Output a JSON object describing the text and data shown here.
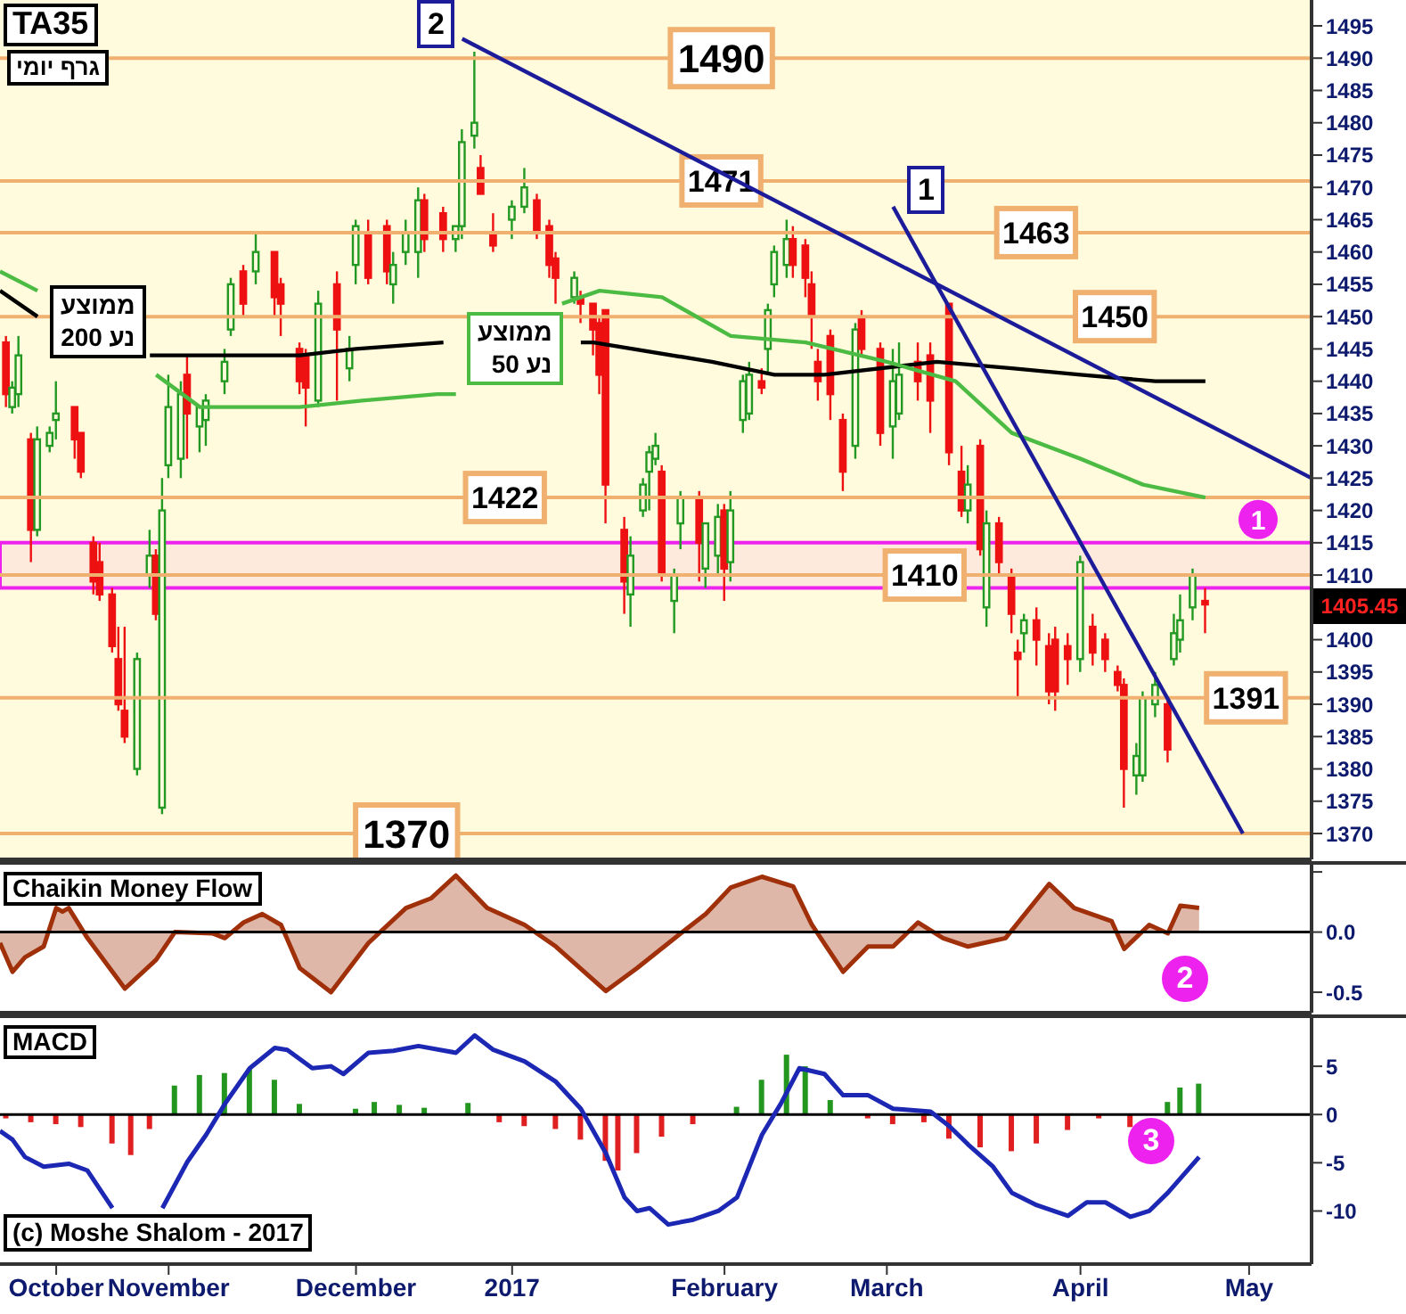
{
  "chart_data": [
    {
      "type": "candlestick",
      "title": "TA35",
      "subtitle": "גרף יומי",
      "xlim": [
        "2016-10-14",
        "2017-05-12"
      ],
      "ylim": [
        1366,
        1499
      ],
      "yticks": [
        1370,
        1375,
        1380,
        1385,
        1390,
        1395,
        1400,
        {
          "value": 1405,
          "label": null
        },
        1410,
        1415,
        1420,
        1425,
        1430,
        1435,
        1440,
        1445,
        1450,
        1455,
        1460,
        1465,
        1470,
        1475,
        1480,
        1485,
        1490,
        1495
      ],
      "tick_labels": "y",
      "series": [
        {
          "x": [
            "2016-10-15",
            "2016-10-16",
            "2016-10-17",
            "2016-10-19",
            "2016-10-20",
            "2016-10-22",
            "2016-10-23",
            "2016-10-26",
            "2016-10-27",
            "2016-10-29",
            "2016-10-30",
            "2016-11-01",
            "2016-11-02",
            "2016-11-03",
            "2016-11-05",
            "2016-11-07",
            "2016-11-08",
            "2016-11-09",
            "2016-11-10",
            "2016-11-12",
            "2016-11-13",
            "2016-11-15",
            "2016-11-16",
            "2016-11-19",
            "2016-11-20",
            "2016-11-22",
            "2016-11-24",
            "2016-11-27",
            "2016-11-28",
            "2016-12-01",
            "2016-12-02",
            "2016-12-04",
            "2016-12-07",
            "2016-12-09",
            "2016-12-10",
            "2016-12-12",
            "2016-12-15",
            "2016-12-16",
            "2016-12-18",
            "2016-12-20",
            "2016-12-21",
            "2016-12-24",
            "2016-12-26",
            "2016-12-27",
            "2016-12-29",
            "2016-12-30",
            "2017-01-01",
            "2017-01-04",
            "2017-01-06",
            "2017-01-08",
            "2017-01-10",
            "2017-01-11",
            "2017-01-14",
            "2017-01-15",
            "2017-01-17",
            "2017-01-18",
            "2017-01-19",
            "2017-01-22",
            "2017-01-23",
            "2017-01-25",
            "2017-01-26",
            "2017-01-27",
            "2017-01-28",
            "2017-01-30",
            "2017-01-31",
            "2017-02-03",
            "2017-02-04",
            "2017-02-06",
            "2017-02-07",
            "2017-02-08",
            "2017-02-10",
            "2017-02-11",
            "2017-02-13",
            "2017-02-14",
            "2017-02-15",
            "2017-02-17",
            "2017-02-18",
            "2017-02-20",
            "2017-02-21",
            "2017-02-22",
            "2017-02-24",
            "2017-02-26",
            "2017-02-28",
            "2017-03-01",
            "2017-03-04",
            "2017-03-06",
            "2017-03-07",
            "2017-03-10",
            "2017-03-12",
            "2017-03-15",
            "2017-03-17",
            "2017-03-18",
            "2017-03-20",
            "2017-03-21",
            "2017-03-23",
            "2017-03-25",
            "2017-03-26",
            "2017-03-27",
            "2017-03-29",
            "2017-03-31",
            "2017-04-01",
            "2017-04-03",
            "2017-04-05",
            "2017-04-07",
            "2017-04-09",
            "2017-04-11",
            "2017-04-12",
            "2017-04-14",
            "2017-04-15",
            "2017-04-17",
            "2017-04-19",
            "2017-04-20",
            "2017-04-21",
            "2017-04-23",
            "2017-04-25"
          ],
          "ohlc": [
            [
              1446,
              1447,
              1436,
              1438
            ],
            [
              1436,
              1440,
              1435,
              1439
            ],
            [
              1438,
              1447,
              1436,
              1444
            ],
            [
              1431,
              1432,
              1412,
              1417
            ],
            [
              1417,
              1433,
              1416,
              1431
            ],
            [
              1430,
              1433,
              1429,
              1432
            ],
            [
              1434,
              1440,
              1431,
              1435
            ],
            [
              1436,
              1436,
              1428,
              1431
            ],
            [
              1432,
              1432,
              1425,
              1426
            ],
            [
              1415,
              1416,
              1407,
              1409
            ],
            [
              1412,
              1415,
              1406,
              1407
            ],
            [
              1407,
              1408,
              1398,
              1399
            ],
            [
              1397,
              1402,
              1389,
              1390
            ],
            [
              1389,
              1402,
              1384,
              1385
            ],
            [
              1380,
              1398,
              1379,
              1397
            ],
            [
              1410,
              1417,
              1408,
              1413
            ],
            [
              1413,
              1414,
              1403,
              1404
            ],
            [
              1374,
              1425,
              1373,
              1420
            ],
            [
              1427,
              1441,
              1425,
              1436
            ],
            [
              1428,
              1440,
              1425,
              1438
            ],
            [
              1441,
              1444,
              1428,
              1435
            ],
            [
              1433,
              1436,
              1429,
              1436
            ],
            [
              1434,
              1438,
              1430,
              1437
            ],
            [
              1440,
              1445,
              1438,
              1443
            ],
            [
              1448,
              1456,
              1447,
              1455
            ],
            [
              1457,
              1458,
              1450,
              1452
            ],
            [
              1457,
              1463,
              1455,
              1460
            ],
            [
              1460,
              1460,
              1450,
              1453
            ],
            [
              1455,
              1456,
              1447,
              1452
            ],
            [
              1445,
              1446,
              1438,
              1440
            ],
            [
              1444,
              1445,
              1433,
              1439
            ],
            [
              1437,
              1454,
              1436,
              1452
            ],
            [
              1455,
              1457,
              1437,
              1448
            ],
            [
              1442,
              1447,
              1440,
              1445
            ],
            [
              1458,
              1465,
              1455,
              1464
            ],
            [
              1463,
              1465,
              1455,
              1456
            ],
            [
              1464,
              1465,
              1455,
              1457
            ],
            [
              1455,
              1460,
              1452,
              1458
            ],
            [
              1460,
              1465,
              1458,
              1463
            ],
            [
              1460,
              1470,
              1456,
              1468
            ],
            [
              1468,
              1469,
              1460,
              1462
            ],
            [
              1466,
              1467,
              1460,
              1462
            ],
            [
              1462,
              1464,
              1460,
              1464
            ],
            [
              1464,
              1479,
              1462,
              1477
            ],
            [
              1478,
              1491,
              1476,
              1480
            ],
            [
              1473,
              1475,
              1469,
              1469
            ],
            [
              1463,
              1466,
              1460,
              1461
            ],
            [
              1465,
              1468,
              1462,
              1467
            ],
            [
              1467,
              1473,
              1466,
              1470
            ],
            [
              1468,
              1469,
              1462,
              1463
            ],
            [
              1464,
              1465,
              1456,
              1458
            ],
            [
              1459,
              1460,
              1452,
              1456
            ],
            [
              1453,
              1457,
              1452,
              1456
            ],
            [
              1453,
              1454,
              1449,
              1452
            ],
            [
              1452,
              1452,
              1444,
              1448
            ],
            [
              1449,
              1450,
              1438,
              1441
            ],
            [
              1451,
              1451,
              1418,
              1424
            ],
            [
              1417,
              1419,
              1404,
              1409
            ],
            [
              1407,
              1416,
              1402,
              1413
            ],
            [
              1420,
              1425,
              1419,
              1424
            ],
            [
              1426,
              1430,
              1420,
              1429
            ],
            [
              1428,
              1432,
              1427,
              1430
            ],
            [
              1426,
              1427,
              1409,
              1410
            ],
            [
              1406,
              1411,
              1401,
              1410
            ],
            [
              1418,
              1423,
              1414,
              1422
            ],
            [
              1422,
              1423,
              1409,
              1415
            ],
            [
              1411,
              1418,
              1408,
              1418
            ],
            [
              1413,
              1421,
              1410,
              1419
            ],
            [
              1420,
              1421,
              1406,
              1411
            ],
            [
              1412,
              1423,
              1409,
              1420
            ],
            [
              1434,
              1441,
              1432,
              1440
            ],
            [
              1435,
              1443,
              1434,
              1441
            ],
            [
              1440,
              1442,
              1438,
              1439
            ],
            [
              1445,
              1452,
              1441,
              1451
            ],
            [
              1455,
              1461,
              1453,
              1460
            ],
            [
              1458,
              1465,
              1456,
              1462
            ],
            [
              1462,
              1464,
              1456,
              1458
            ],
            [
              1461,
              1462,
              1453,
              1456
            ],
            [
              1455,
              1457,
              1445,
              1450
            ],
            [
              1443,
              1445,
              1437,
              1440
            ],
            [
              1447,
              1448,
              1434,
              1438
            ],
            [
              1434,
              1435,
              1423,
              1426
            ],
            [
              1430,
              1449,
              1428,
              1448
            ],
            [
              1450,
              1451,
              1444,
              1445
            ],
            [
              1445,
              1446,
              1430,
              1432
            ],
            [
              1433,
              1445,
              1428,
              1440
            ],
            [
              1435,
              1446,
              1434,
              1441
            ],
            [
              1443,
              1446,
              1437,
              1440
            ],
            [
              1444,
              1446,
              1432,
              1437
            ],
            [
              1452,
              1452,
              1427,
              1429
            ],
            [
              1426,
              1430,
              1419,
              1420
            ],
            [
              1420,
              1427,
              1418,
              1424
            ],
            [
              1430,
              1431,
              1413,
              1414
            ],
            [
              1405,
              1420,
              1402,
              1418
            ],
            [
              1418,
              1419,
              1410,
              1412
            ],
            [
              1410,
              1411,
              1401,
              1404
            ],
            [
              1398,
              1400,
              1391,
              1397
            ],
            [
              1401,
              1404,
              1398,
              1403
            ],
            [
              1403,
              1405,
              1396,
              1400
            ],
            [
              1399,
              1401,
              1390,
              1392
            ],
            [
              1400,
              1402,
              1389,
              1392
            ],
            [
              1399,
              1401,
              1393,
              1397
            ],
            [
              1397,
              1413,
              1395,
              1412
            ],
            [
              1402,
              1404,
              1396,
              1398
            ],
            [
              1400,
              1401,
              1395,
              1397
            ],
            [
              1395,
              1396,
              1392,
              1393
            ],
            [
              1393,
              1394,
              1374,
              1380
            ],
            [
              1379,
              1384,
              1376,
              1382
            ],
            [
              1379,
              1392,
              1378,
              1391
            ],
            [
              1390,
              1395,
              1388,
              1393
            ],
            [
              1390,
              1391,
              1381,
              1383
            ],
            [
              1397,
              1404,
              1396,
              1401
            ],
            [
              1400,
              1407,
              1398,
              1403
            ],
            [
              1405,
              1411,
              1403,
              1410
            ],
            [
              1406,
              1408,
              1401,
              1405.45
            ]
          ],
          "colors": [
            "#ee1111",
            "#229922",
            "#229922",
            "#ee1111",
            "#229922",
            "#229922",
            "#229922",
            "#ee1111",
            "#ee1111",
            "#ee1111",
            "#ee1111",
            "#ee1111",
            "#ee1111",
            "#ee1111",
            "#229922",
            "#229922",
            "#ee1111",
            "#229922",
            "#229922",
            "#229922",
            "#ee1111",
            "#229922",
            "#229922",
            "#229922",
            "#229922",
            "#ee1111",
            "#229922",
            "#ee1111",
            "#ee1111",
            "#ee1111",
            "#ee1111",
            "#229922",
            "#ee1111",
            "#229922",
            "#229922",
            "#ee1111",
            "#ee1111",
            "#229922",
            "#229922",
            "#229922",
            "#ee1111",
            "#ee1111",
            "#229922",
            "#229922",
            "#229922",
            "#ee1111",
            "#ee1111",
            "#229922",
            "#229922",
            "#ee1111",
            "#ee1111",
            "#ee1111",
            "#229922",
            "#ee1111",
            "#ee1111",
            "#ee1111",
            "#ee1111",
            "#ee1111",
            "#229922",
            "#229922",
            "#229922",
            "#229922",
            "#ee1111",
            "#229922",
            "#229922",
            "#ee1111",
            "#229922",
            "#229922",
            "#ee1111",
            "#229922",
            "#229922",
            "#229922",
            "#ee1111",
            "#229922",
            "#229922",
            "#229922",
            "#ee1111",
            "#ee1111",
            "#ee1111",
            "#ee1111",
            "#ee1111",
            "#ee1111",
            "#229922",
            "#ee1111",
            "#ee1111",
            "#229922",
            "#229922",
            "#ee1111",
            "#ee1111",
            "#ee1111",
            "#ee1111",
            "#229922",
            "#ee1111",
            "#229922",
            "#ee1111",
            "#ee1111",
            "#ee1111",
            "#229922",
            "#ee1111",
            "#ee1111",
            "#ee1111",
            "#ee1111",
            "#229922",
            "#ee1111",
            "#ee1111",
            "#ee1111",
            "#ee1111",
            "#229922",
            "#229922",
            "#229922",
            "#ee1111",
            "#229922",
            "#229922",
            "#229922",
            "#ee1111"
          ]
        },
        {
          "type": "line",
          "name": "ממוצע נע 200",
          "color": "#000000",
          "x": [
            "2016-10-14",
            "2016-10-20",
            "2016-10-24",
            "2016-11-07",
            "2016-11-19",
            "2016-12-01",
            "2016-12-10",
            "2016-12-24",
            "2017-01-05",
            "2017-01-15",
            "2017-01-17",
            "2017-02-05",
            "2017-02-15",
            "2017-02-23",
            "2017-03-13",
            "2017-03-25",
            "2017-04-05",
            "2017-04-17",
            "2017-04-25"
          ],
          "values": [
            1454,
            1450,
            null,
            1444,
            1444,
            1444,
            1445,
            1446,
            null,
            1446,
            1446,
            1443,
            1441,
            1441,
            1443,
            1442,
            1441,
            1440,
            1440
          ]
        },
        {
          "type": "line",
          "name": "ממוצע נע 50",
          "color": "#4cbb44",
          "x": [
            "2016-10-14",
            "2016-10-20",
            "2016-10-24",
            "2016-11-08",
            "2016-11-15",
            "2016-11-25",
            "2016-12-01",
            "2016-12-11",
            "2016-12-23",
            "2016-12-26",
            "2017-01-03",
            "2017-01-12",
            "2017-01-18",
            "2017-01-28",
            "2017-02-08",
            "2017-02-20",
            "2017-03-05",
            "2017-03-16",
            "2017-03-25",
            "2017-04-05",
            "2017-04-15",
            "2017-04-25"
          ],
          "values": [
            1457,
            1454,
            null,
            1441,
            1436,
            1436,
            1436,
            1437,
            1438,
            1438,
            null,
            1452,
            1454,
            1453,
            1447,
            1446,
            1443,
            1440,
            1432,
            1428,
            1424,
            1422
          ]
        },
        {
          "type": "line",
          "name": "2",
          "color": "#1c1c9a",
          "x": [
            "2016-12-27",
            "2017-05-12"
          ],
          "values": [
            1493,
            1425
          ]
        },
        {
          "type": "line",
          "name": "1",
          "color": "#1c1c9a",
          "x": [
            "2017-03-06",
            "2017-05-01"
          ],
          "values": [
            1467,
            1370
          ]
        }
      ],
      "ref_lines": [
        {
          "axis": "y",
          "value": 1490,
          "label": "1490",
          "color": "#f0b070"
        },
        {
          "axis": "y",
          "value": 1471,
          "label": "1471",
          "color": "#f0b070"
        },
        {
          "axis": "y",
          "value": 1463,
          "label": "1463",
          "color": "#f0b070"
        },
        {
          "axis": "y",
          "value": 1450,
          "label": "1450",
          "color": "#f0b070"
        },
        {
          "axis": "y",
          "value": 1422,
          "label": "1422",
          "color": "#f0b070"
        },
        {
          "axis": "y",
          "value": 1410,
          "label": "1410",
          "color": "#f0b070"
        },
        {
          "axis": "y",
          "value": 1391,
          "label": "1391",
          "color": "#f0b070"
        },
        {
          "axis": "y",
          "value": 1370,
          "label": "1370",
          "color": "#f0b070"
        }
      ],
      "bands": [
        {
          "axis": "y",
          "from": 1408,
          "to": 1415,
          "label": "1",
          "color": "#ee22ee"
        }
      ],
      "annotations": [
        "1405.45"
      ]
    },
    {
      "type": "area",
      "title": "Chaikin Money Flow",
      "xlim": [
        "2016-10-14",
        "2017-05-12"
      ],
      "ylim": [
        -0.67,
        0.56
      ],
      "yticks": [
        {
          "value": 0.5,
          "label": null
        },
        {
          "value": 0,
          "label": "0.0"
        },
        {
          "value": -0.5,
          "label": "-0.5"
        }
      ],
      "tick_labels": "y",
      "ref_lines": [
        {
          "axis": "y",
          "value": 0,
          "color": "#000000"
        }
      ],
      "annotations": [
        "2"
      ],
      "series": [
        {
          "color": "#a0300a",
          "x": [
            "2016-10-14",
            "2016-10-16",
            "2016-10-18",
            "2016-10-21",
            "2016-10-23",
            "2016-10-24",
            "2016-10-25",
            "2016-10-28",
            "2016-11-03",
            "2016-11-08",
            "2016-11-11",
            "2016-11-17",
            "2016-11-19",
            "2016-11-22",
            "2016-11-25",
            "2016-11-28",
            "2016-12-01",
            "2016-12-06",
            "2016-12-12",
            "2016-12-18",
            "2016-12-22",
            "2016-12-26",
            "2016-12-31",
            "2017-01-03",
            "2017-01-06",
            "2017-01-11",
            "2017-01-19",
            "2017-01-24",
            "2017-01-31",
            "2017-02-04",
            "2017-02-08",
            "2017-02-13",
            "2017-02-18",
            "2017-02-21",
            "2017-02-26",
            "2017-03-02",
            "2017-03-06",
            "2017-03-10",
            "2017-03-14",
            "2017-03-18",
            "2017-03-24",
            "2017-03-31",
            "2017-04-04",
            "2017-04-10",
            "2017-04-12",
            "2017-04-16",
            "2017-04-19",
            "2017-04-21",
            "2017-04-24"
          ],
          "values": [
            -0.09,
            -0.33,
            -0.21,
            -0.12,
            0.2,
            0.17,
            0.2,
            -0.05,
            -0.47,
            -0.23,
            0,
            -0.01,
            -0.05,
            0.08,
            0.15,
            0.06,
            -0.3,
            -0.5,
            -0.09,
            0.2,
            0.28,
            0.47,
            0.2,
            0.13,
            0.06,
            -0.12,
            -0.49,
            -0.3,
            -0.01,
            0.15,
            0.37,
            0.46,
            0.38,
            0.06,
            -0.33,
            -0.12,
            -0.12,
            0.08,
            -0.05,
            -0.12,
            -0.05,
            0.4,
            0.2,
            0.09,
            -0.14,
            0.06,
            -0.01,
            0.22,
            0.2
          ]
        }
      ]
    },
    {
      "type": "bar",
      "title": "MACD",
      "xlim": [
        "2016-10-14",
        "2017-05-12"
      ],
      "ylim": [
        -15.5,
        10
      ],
      "yticks": [
        5,
        0,
        -5,
        -10
      ],
      "xticks": [
        {
          "value": "2016-10-23",
          "label": "October"
        },
        {
          "value": "2016-11-10",
          "label": "November"
        },
        {
          "value": "2016-12-10",
          "label": "December"
        },
        {
          "value": "2017-01-04",
          "label": "2017"
        },
        {
          "value": "2017-02-07",
          "label": "February"
        },
        {
          "value": "2017-03-05",
          "label": "March"
        },
        {
          "value": "2017-04-05",
          "label": "April"
        },
        {
          "value": "2017-05-02",
          "label": "May"
        }
      ],
      "ref_lines": [
        {
          "axis": "y",
          "value": 0,
          "color": "#000000"
        }
      ],
      "annotations": [
        "3",
        "(c) Moshe Shalom - 2017"
      ],
      "series": [
        {
          "x": [
            "2016-10-15",
            "2016-10-19",
            "2016-10-23",
            "2016-10-27",
            "2016-11-01",
            "2016-11-04",
            "2016-11-07",
            "2016-11-11",
            "2016-11-15",
            "2016-11-19",
            "2016-11-23",
            "2016-11-27",
            "2016-12-01",
            "2016-12-06",
            "2016-12-10",
            "2016-12-13",
            "2016-12-17",
            "2016-12-21",
            "2016-12-28",
            "2017-01-02",
            "2017-01-06",
            "2017-01-11",
            "2017-01-15",
            "2017-01-19",
            "2017-01-21",
            "2017-01-24",
            "2017-01-28",
            "2017-02-02",
            "2017-02-09",
            "2017-02-13",
            "2017-02-17",
            "2017-02-20",
            "2017-02-24",
            "2017-03-02",
            "2017-03-06",
            "2017-03-11",
            "2017-03-15",
            "2017-03-20",
            "2017-03-25",
            "2017-03-29",
            "2017-04-03",
            "2017-04-08",
            "2017-04-13",
            "2017-04-19",
            "2017-04-21",
            "2017-04-24"
          ],
          "values": [
            -0.4,
            -0.8,
            -1.0,
            -1.3,
            -3.0,
            -4.2,
            -1.5,
            3.0,
            4.1,
            4.3,
            4.8,
            3.6,
            1.1,
            0.1,
            0.6,
            1.3,
            1.0,
            0.7,
            1.2,
            -0.8,
            -1.2,
            -1.5,
            -2.6,
            -4.8,
            -5.8,
            -4.0,
            -2.3,
            -1.0,
            0.8,
            3.6,
            6.2,
            5.0,
            1.5,
            -0.4,
            -1.0,
            -0.8,
            -2.5,
            -3.4,
            -3.8,
            -3.0,
            -1.6,
            -0.4,
            -1.3,
            1.3,
            2.8,
            3.2
          ],
          "colors": [
            "#e02020",
            "#e02020",
            "#e02020",
            "#e02020",
            "#e02020",
            "#e02020",
            "#e02020",
            "#22961e",
            "#22961e",
            "#22961e",
            "#22961e",
            "#22961e",
            "#22961e",
            "#22961e",
            "#22961e",
            "#22961e",
            "#22961e",
            "#22961e",
            "#22961e",
            "#e02020",
            "#e02020",
            "#e02020",
            "#e02020",
            "#e02020",
            "#e02020",
            "#e02020",
            "#e02020",
            "#e02020",
            "#22961e",
            "#22961e",
            "#22961e",
            "#22961e",
            "#22961e",
            "#e02020",
            "#e02020",
            "#e02020",
            "#e02020",
            "#e02020",
            "#e02020",
            "#e02020",
            "#e02020",
            "#e02020",
            "#e02020",
            "#22961e",
            "#22961e",
            "#22961e"
          ]
        },
        {
          "type": "line",
          "color": "#1c28b4",
          "x": [
            "2016-10-14",
            "2016-10-16",
            "2016-10-18",
            "2016-10-21",
            "2016-10-25",
            "2016-10-28",
            "2016-11-01",
            "2016-11-05",
            "2016-11-09",
            "2016-11-13",
            "2016-11-16",
            "2016-11-19",
            "2016-11-23",
            "2016-11-27",
            "2016-11-29",
            "2016-12-03",
            "2016-12-06",
            "2016-12-08",
            "2016-12-12",
            "2016-12-16",
            "2016-12-20",
            "2016-12-26",
            "2016-12-29",
            "2017-01-01",
            "2017-01-06",
            "2017-01-11",
            "2017-01-15",
            "2017-01-19",
            "2017-01-22",
            "2017-01-24",
            "2017-01-26",
            "2017-01-29",
            "2017-02-02",
            "2017-02-06",
            "2017-02-09",
            "2017-02-13",
            "2017-02-16",
            "2017-02-19",
            "2017-02-23",
            "2017-02-26",
            "2017-03-02",
            "2017-03-06",
            "2017-03-08",
            "2017-03-12",
            "2017-03-15",
            "2017-03-18",
            "2017-03-22",
            "2017-03-25",
            "2017-03-29",
            "2017-04-03",
            "2017-04-06",
            "2017-04-09",
            "2017-04-13",
            "2017-04-16",
            "2017-04-19",
            "2017-04-24"
          ],
          "values": [
            -1.7,
            -2.6,
            -4.4,
            -5.4,
            -5.1,
            -5.8,
            -9.7,
            null,
            -9.7,
            -4.9,
            -2.1,
            1.1,
            4.8,
            6.9,
            6.7,
            4.8,
            5.0,
            4.2,
            6.4,
            6.6,
            7.1,
            6.4,
            8.2,
            6.7,
            5.5,
            3.4,
            0.6,
            -4.0,
            -8.6,
            -10.0,
            -9.7,
            -11.4,
            -10.9,
            -10.0,
            -8.6,
            -2.1,
            1.1,
            4.8,
            4.2,
            2.0,
            2.0,
            0.6,
            0.5,
            0.3,
            -1.2,
            -3.1,
            -5.4,
            -8.1,
            -9.4,
            -10.5,
            -9.1,
            -9.1,
            -10.6,
            -10.0,
            -8.1,
            -4.4
          ]
        }
      ]
    }
  ]
}
